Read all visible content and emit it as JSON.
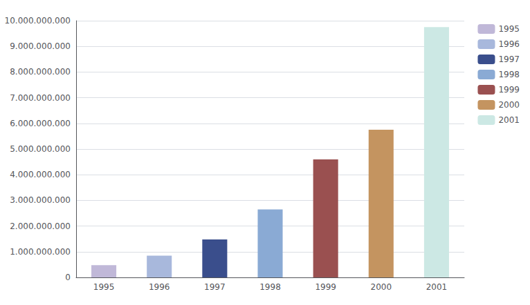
{
  "chart_data": {
    "type": "bar",
    "categories": [
      "1995",
      "1996",
      "1997",
      "1998",
      "1999",
      "2000",
      "2001"
    ],
    "series": [
      {
        "name": "1995",
        "color": "#c0b8d8",
        "values": [
          480000000,
          null,
          null,
          null,
          null,
          null,
          null
        ]
      },
      {
        "name": "1996",
        "color": "#a8b8dc",
        "values": [
          null,
          850000000,
          null,
          null,
          null,
          null,
          null
        ]
      },
      {
        "name": "1997",
        "color": "#3a4e8c",
        "values": [
          null,
          null,
          1480000000,
          null,
          null,
          null,
          null
        ]
      },
      {
        "name": "1998",
        "color": "#8aaad4",
        "values": [
          null,
          null,
          null,
          2650000000,
          null,
          null,
          null
        ]
      },
      {
        "name": "1999",
        "color": "#9a5050",
        "values": [
          null,
          null,
          null,
          null,
          4600000000,
          null,
          null
        ]
      },
      {
        "name": "2000",
        "color": "#c49460",
        "values": [
          null,
          null,
          null,
          null,
          null,
          5750000000,
          null
        ]
      },
      {
        "name": "2001",
        "color": "#cce8e4",
        "values": [
          null,
          null,
          null,
          null,
          null,
          null,
          9750000000
        ]
      }
    ],
    "ylim": [
      0,
      10000000000
    ],
    "yticks": [
      0,
      {
        "value": 1000000000,
        "label": "1.000.000.000"
      },
      {
        "value": 2000000000,
        "label": "2.000.000.000"
      },
      {
        "value": 3000000000,
        "label": "3.000.000.000"
      },
      {
        "value": 4000000000,
        "label": "4.000.000.000"
      },
      {
        "value": 5000000000,
        "label": "5.000.000.000"
      },
      {
        "value": 6000000000,
        "label": "6.000.000.000"
      },
      {
        "value": 7000000000,
        "label": "7.000.000.000"
      },
      {
        "value": 8000000000,
        "label": "8.000.000.000"
      },
      {
        "value": 9000000000,
        "label": "9.000.000.000"
      },
      {
        "value": 10000000000,
        "label": "10.000.000.000"
      }
    ],
    "grid": true,
    "legend": "upper right"
  }
}
